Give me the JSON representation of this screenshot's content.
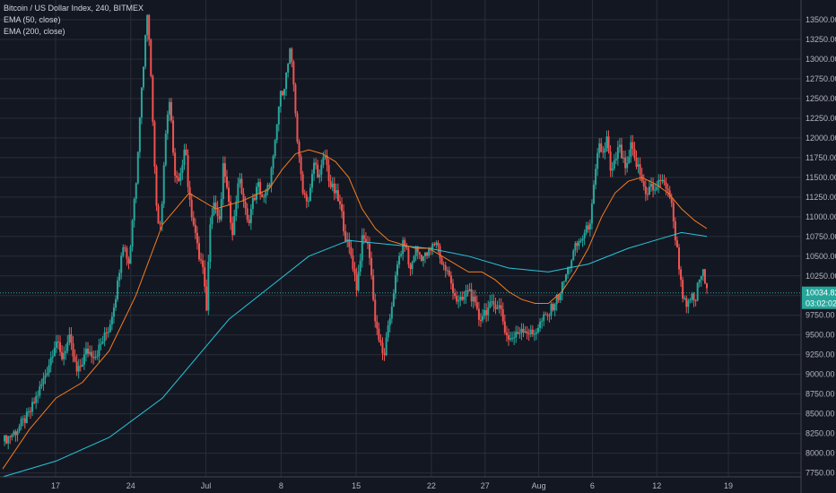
{
  "chart_data": {
    "type": "candlestick",
    "title": "Bitcoin / US Dollar Index, 240, BITMEX",
    "indicators": [
      "EMA (50, close)",
      "EMA (200, close)"
    ],
    "ylim": [
      7700,
      13750
    ],
    "y_ticks": [
      "7750.00",
      "8000.00",
      "8250.00",
      "8500.00",
      "8750.00",
      "9000.00",
      "9250.00",
      "9500.00",
      "9750.00",
      "10000.00",
      "10250.00",
      "10500.00",
      "10750.00",
      "11000.00",
      "11250.00",
      "11500.00",
      "11750.00",
      "12000.00",
      "12250.00",
      "12500.00",
      "12750.00",
      "13000.00",
      "13250.00",
      "13500.00"
    ],
    "x_ticks": [
      "17",
      "24",
      "Jul",
      "8",
      "15",
      "22",
      "27",
      "Aug",
      "6",
      "12",
      "19"
    ],
    "current_price": "10034.82",
    "countdown": "03:02:02",
    "current_value": 10034.82,
    "colors": {
      "background": "#131722",
      "grid": "#2a2e39",
      "up": "#26a69a",
      "down": "#ef5350",
      "ema50": "#f57c1f",
      "ema200": "#26c6da",
      "price_line": "#26a69a"
    },
    "price_path": [
      [
        14.0,
        8150
      ],
      [
        15.0,
        8280
      ],
      [
        16.0,
        8500
      ],
      [
        17.0,
        8900
      ],
      [
        17.6,
        9200
      ],
      [
        18.0,
        9450
      ],
      [
        18.4,
        9200
      ],
      [
        19.0,
        9450
      ],
      [
        19.6,
        9000
      ],
      [
        20.3,
        9300
      ],
      [
        21.0,
        9250
      ],
      [
        22.0,
        9600
      ],
      [
        22.6,
        10100
      ],
      [
        23.0,
        10700
      ],
      [
        23.5,
        10400
      ],
      [
        23.8,
        11100
      ],
      [
        24.0,
        11400
      ],
      [
        24.3,
        12300
      ],
      [
        24.6,
        13000
      ],
      [
        24.9,
        13700
      ],
      [
        25.2,
        12500
      ],
      [
        25.6,
        11000
      ],
      [
        25.9,
        10900
      ],
      [
        26.2,
        12000
      ],
      [
        26.6,
        12500
      ],
      [
        26.9,
        11500
      ],
      [
        27.3,
        11400
      ],
      [
        27.7,
        12000
      ],
      [
        28.0,
        11200
      ],
      [
        28.4,
        10900
      ],
      [
        28.7,
        10500
      ],
      [
        29.0,
        10400
      ],
      [
        29.3,
        9800
      ],
      [
        29.6,
        11000
      ],
      [
        29.9,
        11200
      ],
      [
        30.3,
        10900
      ],
      [
        30.6,
        11700
      ],
      [
        31.0,
        11100
      ],
      [
        31.3,
        10800
      ],
      [
        31.7,
        11500
      ],
      [
        32.0,
        11300
      ],
      [
        32.4,
        10900
      ],
      [
        32.8,
        11200
      ],
      [
        33.2,
        11400
      ],
      [
        33.6,
        11200
      ],
      [
        34.0,
        11400
      ],
      [
        34.4,
        11800
      ],
      [
        34.8,
        12500
      ],
      [
        35.2,
        12700
      ],
      [
        35.6,
        13100
      ],
      [
        35.9,
        12600
      ],
      [
        36.2,
        11800
      ],
      [
        36.6,
        11300
      ],
      [
        37.0,
        11200
      ],
      [
        37.4,
        11700
      ],
      [
        37.8,
        11500
      ],
      [
        38.2,
        11800
      ],
      [
        38.6,
        11400
      ],
      [
        39.0,
        11300
      ],
      [
        39.4,
        11100
      ],
      [
        39.8,
        10700
      ],
      [
        40.2,
        10500
      ],
      [
        40.6,
        10100
      ],
      [
        41.0,
        10700
      ],
      [
        41.3,
        10700
      ],
      [
        41.6,
        10500
      ],
      [
        41.9,
        9800
      ],
      [
        42.2,
        9500
      ],
      [
        42.6,
        9200
      ],
      [
        43.0,
        9600
      ],
      [
        43.4,
        10100
      ],
      [
        43.8,
        10500
      ],
      [
        44.2,
        10700
      ],
      [
        44.6,
        10300
      ],
      [
        45.0,
        10600
      ],
      [
        45.4,
        10500
      ],
      [
        45.8,
        10500
      ],
      [
        46.2,
        10600
      ],
      [
        46.6,
        10700
      ],
      [
        47.0,
        10400
      ],
      [
        47.4,
        10300
      ],
      [
        47.8,
        10100
      ],
      [
        48.2,
        9900
      ],
      [
        48.6,
        9950
      ],
      [
        49.0,
        10100
      ],
      [
        49.4,
        9900
      ],
      [
        49.8,
        9700
      ],
      [
        50.2,
        9800
      ],
      [
        50.6,
        9850
      ],
      [
        51.0,
        9900
      ],
      [
        51.4,
        9850
      ],
      [
        51.8,
        9500
      ],
      [
        52.2,
        9450
      ],
      [
        52.6,
        9500
      ],
      [
        53.0,
        9600
      ],
      [
        53.4,
        9550
      ],
      [
        53.8,
        9500
      ],
      [
        54.2,
        9600
      ],
      [
        54.6,
        9700
      ],
      [
        55.0,
        9750
      ],
      [
        55.4,
        9900
      ],
      [
        55.8,
        10000
      ],
      [
        56.2,
        10200
      ],
      [
        56.6,
        10400
      ],
      [
        57.0,
        10600
      ],
      [
        57.4,
        10700
      ],
      [
        57.8,
        10800
      ],
      [
        58.2,
        11000
      ],
      [
        58.5,
        11500
      ],
      [
        58.8,
        11900
      ],
      [
        59.1,
        11800
      ],
      [
        59.4,
        12000
      ],
      [
        59.7,
        11500
      ],
      [
        60.0,
        11700
      ],
      [
        60.3,
        11900
      ],
      [
        60.6,
        11700
      ],
      [
        60.9,
        11600
      ],
      [
        61.2,
        11900
      ],
      [
        61.5,
        11700
      ],
      [
        61.8,
        11600
      ],
      [
        62.1,
        11400
      ],
      [
        62.4,
        11300
      ],
      [
        62.7,
        11400
      ],
      [
        63.0,
        11300
      ],
      [
        63.3,
        11500
      ],
      [
        63.6,
        11400
      ],
      [
        63.9,
        11400
      ],
      [
        64.2,
        11200
      ],
      [
        64.5,
        10800
      ],
      [
        64.8,
        10400
      ],
      [
        65.1,
        10000
      ],
      [
        65.4,
        9800
      ],
      [
        65.7,
        10000
      ],
      [
        66.0,
        9900
      ],
      [
        66.3,
        10200
      ],
      [
        66.6,
        10300
      ],
      [
        66.9,
        10034
      ]
    ],
    "ema50_path": [
      [
        14.0,
        7800
      ],
      [
        16.0,
        8300
      ],
      [
        18.0,
        8700
      ],
      [
        20.0,
        8900
      ],
      [
        22.0,
        9300
      ],
      [
        24.0,
        10000
      ],
      [
        26.0,
        10900
      ],
      [
        28.0,
        11300
      ],
      [
        30.0,
        11100
      ],
      [
        32.0,
        11200
      ],
      [
        34.0,
        11350
      ],
      [
        35.0,
        11600
      ],
      [
        36.0,
        11800
      ],
      [
        37.0,
        11850
      ],
      [
        38.0,
        11800
      ],
      [
        39.0,
        11700
      ],
      [
        40.0,
        11500
      ],
      [
        41.0,
        11100
      ],
      [
        42.0,
        10850
      ],
      [
        43.0,
        10700
      ],
      [
        44.0,
        10650
      ],
      [
        45.0,
        10600
      ],
      [
        46.0,
        10600
      ],
      [
        47.0,
        10500
      ],
      [
        48.0,
        10400
      ],
      [
        49.0,
        10300
      ],
      [
        50.0,
        10300
      ],
      [
        51.0,
        10200
      ],
      [
        52.0,
        10050
      ],
      [
        53.0,
        9950
      ],
      [
        54.0,
        9900
      ],
      [
        55.0,
        9900
      ],
      [
        56.0,
        10050
      ],
      [
        57.0,
        10300
      ],
      [
        58.0,
        10600
      ],
      [
        59.0,
        11000
      ],
      [
        60.0,
        11300
      ],
      [
        61.0,
        11450
      ],
      [
        62.0,
        11500
      ],
      [
        63.0,
        11420
      ],
      [
        64.0,
        11300
      ],
      [
        65.0,
        11100
      ],
      [
        66.0,
        10950
      ],
      [
        66.9,
        10850
      ]
    ],
    "ema200_path": [
      [
        14.0,
        7700
      ],
      [
        18.0,
        7900
      ],
      [
        22.0,
        8200
      ],
      [
        26.0,
        8700
      ],
      [
        29.0,
        9300
      ],
      [
        31.0,
        9700
      ],
      [
        34.0,
        10100
      ],
      [
        37.0,
        10500
      ],
      [
        40.0,
        10700
      ],
      [
        43.0,
        10650
      ],
      [
        46.0,
        10600
      ],
      [
        49.0,
        10500
      ],
      [
        52.0,
        10350
      ],
      [
        55.0,
        10300
      ],
      [
        58.0,
        10400
      ],
      [
        61.0,
        10600
      ],
      [
        63.0,
        10700
      ],
      [
        65.0,
        10800
      ],
      [
        66.9,
        10750
      ]
    ]
  }
}
